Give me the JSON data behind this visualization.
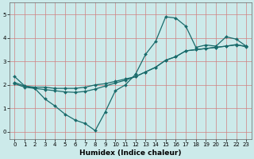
{
  "title": "",
  "xlabel": "Humidex (Indice chaleur)",
  "bg_color": "#cceaea",
  "grid_color": "#d08080",
  "line_color": "#1a6b6b",
  "xlim": [
    -0.5,
    23.5
  ],
  "ylim": [
    -0.3,
    5.5
  ],
  "xticks": [
    0,
    1,
    2,
    3,
    4,
    5,
    6,
    7,
    8,
    9,
    10,
    11,
    12,
    13,
    14,
    15,
    16,
    17,
    18,
    19,
    20,
    21,
    22,
    23
  ],
  "yticks": [
    0,
    1,
    2,
    3,
    4,
    5
  ],
  "line1_x": [
    0,
    1,
    2,
    3,
    4,
    5,
    6,
    7,
    8,
    9,
    10,
    11,
    12,
    13,
    14,
    15,
    16,
    17,
    18,
    19,
    20,
    21,
    22,
    23
  ],
  "line1_y": [
    2.35,
    1.95,
    1.85,
    1.4,
    1.1,
    0.75,
    0.5,
    0.35,
    0.05,
    0.85,
    1.75,
    2.0,
    2.45,
    3.3,
    3.85,
    4.9,
    4.85,
    4.5,
    3.6,
    3.7,
    3.65,
    4.05,
    3.95,
    3.65
  ],
  "line2_x": [
    0,
    1,
    2,
    3,
    4,
    5,
    6,
    7,
    8,
    9,
    10,
    11,
    12,
    13,
    14,
    15,
    16,
    17,
    18,
    19,
    20,
    21,
    22,
    23
  ],
  "line2_y": [
    2.1,
    1.95,
    1.9,
    1.9,
    1.85,
    1.85,
    1.85,
    1.9,
    2.0,
    2.05,
    2.15,
    2.25,
    2.35,
    2.55,
    2.75,
    3.05,
    3.2,
    3.45,
    3.5,
    3.55,
    3.6,
    3.65,
    3.7,
    3.65
  ],
  "line3_x": [
    0,
    1,
    2,
    3,
    4,
    5,
    6,
    7,
    8,
    9,
    10,
    11,
    12,
    13,
    14,
    15,
    16,
    17,
    18,
    19,
    20,
    21,
    22,
    23
  ],
  "line3_y": [
    2.05,
    1.9,
    1.85,
    1.8,
    1.75,
    1.7,
    1.68,
    1.72,
    1.82,
    1.95,
    2.08,
    2.2,
    2.35,
    2.55,
    2.75,
    3.05,
    3.2,
    3.45,
    3.5,
    3.55,
    3.6,
    3.65,
    3.72,
    3.62
  ],
  "xlabel_fontsize": 6.5,
  "tick_fontsize": 5.0
}
